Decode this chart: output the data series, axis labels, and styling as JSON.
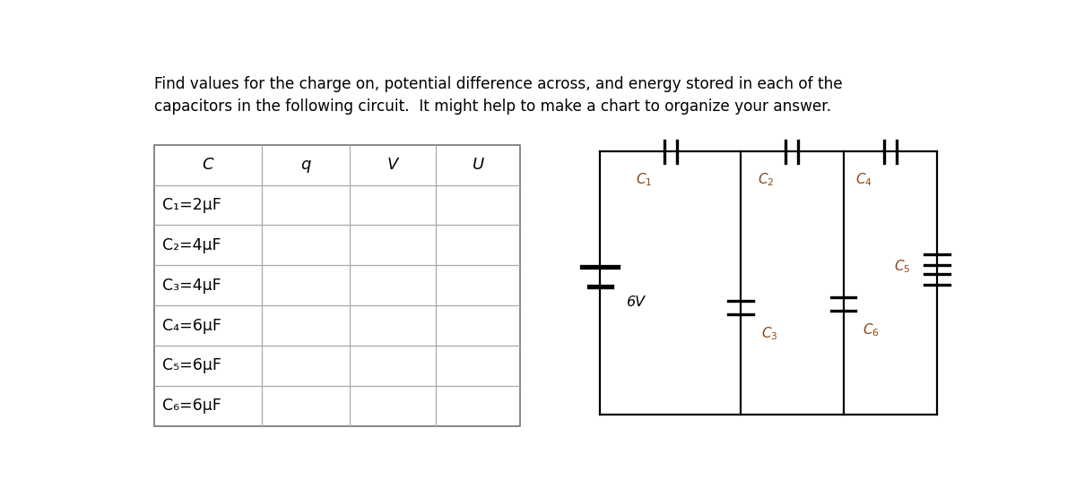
{
  "title_line1": "Find values for the charge on, potential difference across, and energy stored in each of the",
  "title_line2": "capacitors in the following circuit.  It might help to make a chart to organize your answer.",
  "table_headers": [
    "C",
    "q",
    "V",
    "U"
  ],
  "table_rows": [
    "C₁=2μF",
    "C₂=4μF",
    "C₃=4μF",
    "C₄=6μF",
    "C₅=6μF",
    "C₆=6μF"
  ],
  "bg_color": "#ffffff",
  "text_color": "#000000",
  "line_color": "#aaaaaa",
  "circuit_color": "#000000",
  "label_color": "#8B4513"
}
